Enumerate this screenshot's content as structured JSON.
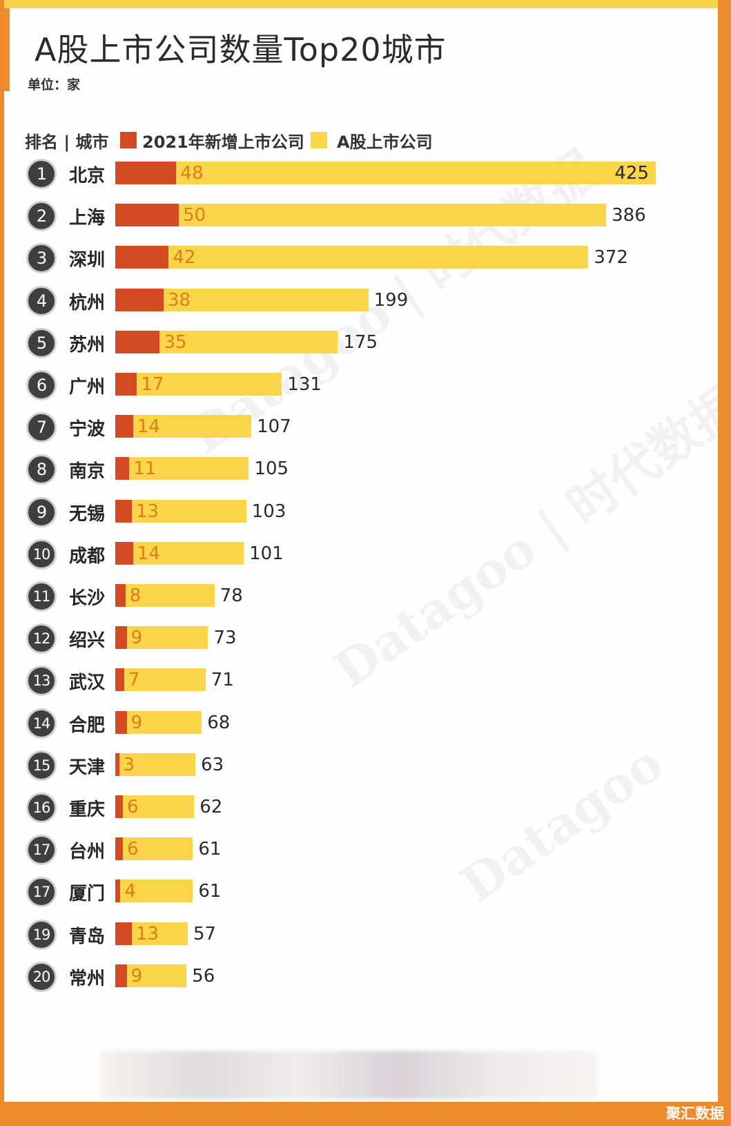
{
  "title": "A股上市公司数量Top20城市",
  "unit": "单位：家",
  "header": {
    "rank_city": "排名 | 城市",
    "legend_new": "2021年新增上市公司",
    "legend_total": "A股上市公司"
  },
  "watermarks": [
    "Datagoo | 时代数据",
    "Datagoo | 时代数据",
    "Datagoo"
  ],
  "brand": "聚汇数据",
  "colors": {
    "background": "#ed8a2c",
    "new_bar": "#d44a22",
    "total_bar": "#fad54a",
    "new_label": "#de7c1c",
    "rank_circle": "#3f3f3f"
  },
  "chart_data": {
    "type": "bar",
    "orientation": "horizontal",
    "title": "A股上市公司数量Top20城市",
    "unit": "单位：家",
    "categories": [
      "北京",
      "上海",
      "深圳",
      "杭州",
      "苏州",
      "广州",
      "宁波",
      "南京",
      "无锡",
      "成都",
      "长沙",
      "绍兴",
      "武汉",
      "合肥",
      "天津",
      "重庆",
      "台州",
      "厦门",
      "青岛",
      "常州"
    ],
    "ranks": [
      "1",
      "2",
      "3",
      "4",
      "5",
      "6",
      "7",
      "8",
      "9",
      "10",
      "11",
      "12",
      "13",
      "14",
      "15",
      "16",
      "17",
      "17",
      "19",
      "20"
    ],
    "series": [
      {
        "name": "2021年新增上市公司",
        "values": [
          48,
          50,
          42,
          38,
          35,
          17,
          14,
          11,
          13,
          14,
          8,
          9,
          7,
          9,
          3,
          6,
          6,
          4,
          13,
          9
        ]
      },
      {
        "name": "A股上市公司",
        "values": [
          425,
          386,
          372,
          199,
          175,
          131,
          107,
          105,
          103,
          101,
          78,
          73,
          71,
          68,
          63,
          62,
          61,
          61,
          57,
          56
        ]
      }
    ],
    "xlim": [
      0,
      425
    ],
    "legend_position": "top-left",
    "grid": false
  }
}
